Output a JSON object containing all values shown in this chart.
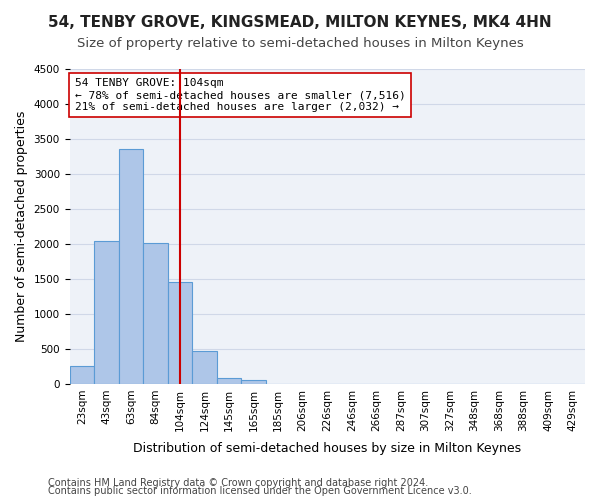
{
  "title": "54, TENBY GROVE, KINGSMEAD, MILTON KEYNES, MK4 4HN",
  "subtitle": "Size of property relative to semi-detached houses in Milton Keynes",
  "xlabel": "Distribution of semi-detached houses by size in Milton Keynes",
  "ylabel": "Number of semi-detached properties",
  "bar_values": [
    260,
    2040,
    3360,
    2010,
    1450,
    470,
    90,
    50,
    0,
    0,
    0,
    0,
    0,
    0,
    0,
    0,
    0,
    0,
    0,
    0,
    0
  ],
  "bar_labels": [
    "23sqm",
    "43sqm",
    "63sqm",
    "84sqm",
    "104sqm",
    "124sqm",
    "145sqm",
    "165sqm",
    "185sqm",
    "206sqm",
    "226sqm",
    "246sqm",
    "266sqm",
    "287sqm",
    "307sqm",
    "327sqm",
    "348sqm",
    "368sqm",
    "388sqm",
    "409sqm",
    "429sqm"
  ],
  "bar_color": "#aec6e8",
  "bar_edge_color": "#5b9bd5",
  "property_value": 104,
  "property_bin_index": 4,
  "annotation_text": "54 TENBY GROVE: 104sqm\n← 78% of semi-detached houses are smaller (7,516)\n21% of semi-detached houses are larger (2,032) →",
  "vline_color": "#cc0000",
  "vline_bin_index": 4,
  "annotation_box_color": "#ffffff",
  "annotation_box_edge": "#cc0000",
  "ylim": [
    0,
    4500
  ],
  "grid_color": "#d0d8e8",
  "footer1": "Contains HM Land Registry data © Crown copyright and database right 2024.",
  "footer2": "Contains public sector information licensed under the Open Government Licence v3.0.",
  "title_fontsize": 11,
  "subtitle_fontsize": 9.5,
  "xlabel_fontsize": 9,
  "ylabel_fontsize": 9,
  "tick_fontsize": 7.5,
  "footer_fontsize": 7,
  "annotation_fontsize": 8
}
